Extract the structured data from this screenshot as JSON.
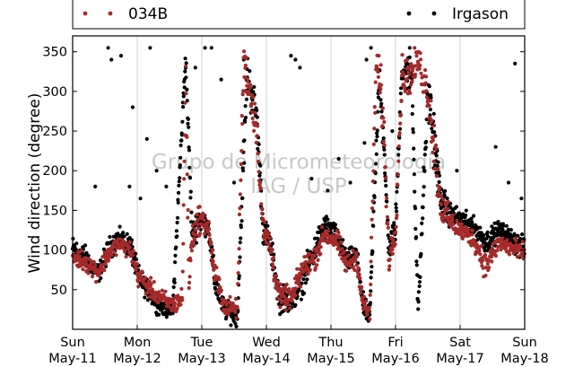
{
  "chart_data": {
    "type": "scatter",
    "ylabel": "Wind direction (degree)",
    "ylim": [
      0,
      370
    ],
    "yticks": [
      50,
      100,
      150,
      200,
      250,
      300,
      350
    ],
    "xlim": [
      0,
      7
    ],
    "xticks": [
      {
        "x": 0,
        "day": "Sun",
        "date": "May-11"
      },
      {
        "x": 1,
        "day": "Mon",
        "date": "May-12"
      },
      {
        "x": 2,
        "day": "Tue",
        "date": "May-13"
      },
      {
        "x": 3,
        "day": "Wed",
        "date": "May-14"
      },
      {
        "x": 4,
        "day": "Thu",
        "date": "May-15"
      },
      {
        "x": 5,
        "day": "Fri",
        "date": "May-16"
      },
      {
        "x": 6,
        "day": "Sat",
        "date": "May-17"
      },
      {
        "x": 7,
        "day": "Sun",
        "date": "May-18"
      }
    ],
    "grid": "vertical",
    "legend_placement": "top",
    "watermark": [
      "Grupo de Micrometeorologia",
      "IAG / USP"
    ],
    "series": [
      {
        "name": "034B",
        "color": "#a52a2a",
        "trend": [
          [
            0.0,
            92,
            10
          ],
          [
            0.2,
            85,
            10
          ],
          [
            0.4,
            72,
            10
          ],
          [
            0.55,
            95,
            10
          ],
          [
            0.7,
            108,
            8
          ],
          [
            0.9,
            100,
            10
          ],
          [
            1.0,
            70,
            12
          ],
          [
            1.15,
            55,
            10
          ],
          [
            1.35,
            40,
            10
          ],
          [
            1.55,
            30,
            10
          ],
          [
            1.7,
            40,
            12
          ],
          [
            1.75,
            330,
            25
          ],
          [
            1.8,
            60,
            20
          ],
          [
            1.85,
            115,
            15
          ],
          [
            1.95,
            140,
            15
          ],
          [
            2.1,
            130,
            10
          ],
          [
            2.2,
            70,
            15
          ],
          [
            2.35,
            30,
            10
          ],
          [
            2.55,
            25,
            10
          ],
          [
            2.65,
            340,
            20
          ],
          [
            2.75,
            300,
            25
          ],
          [
            2.85,
            255,
            20
          ],
          [
            2.95,
            125,
            15
          ],
          [
            3.05,
            110,
            15
          ],
          [
            3.2,
            40,
            12
          ],
          [
            3.4,
            40,
            12
          ],
          [
            3.55,
            75,
            15
          ],
          [
            3.75,
            90,
            12
          ],
          [
            3.9,
            120,
            12
          ],
          [
            4.1,
            110,
            12
          ],
          [
            4.25,
            80,
            12
          ],
          [
            4.4,
            90,
            10
          ],
          [
            4.5,
            30,
            12
          ],
          [
            4.6,
            20,
            10
          ],
          [
            4.7,
            340,
            20
          ],
          [
            4.8,
            280,
            30
          ],
          [
            4.9,
            90,
            15
          ],
          [
            5.0,
            125,
            15
          ],
          [
            5.1,
            320,
            20
          ],
          [
            5.25,
            320,
            20
          ],
          [
            5.35,
            340,
            15
          ],
          [
            5.5,
            300,
            25
          ],
          [
            5.6,
            230,
            30
          ],
          [
            5.7,
            160,
            20
          ],
          [
            5.85,
            135,
            12
          ],
          [
            6.0,
            125,
            10
          ],
          [
            6.2,
            115,
            10
          ],
          [
            6.4,
            80,
            15
          ],
          [
            6.6,
            110,
            10
          ],
          [
            6.85,
            100,
            12
          ],
          [
            7.0,
            95,
            10
          ]
        ]
      },
      {
        "name": "Irgason",
        "color": "#000000",
        "trend": [
          [
            0.0,
            100,
            15
          ],
          [
            0.2,
            90,
            12
          ],
          [
            0.4,
            70,
            10
          ],
          [
            0.55,
            100,
            12
          ],
          [
            0.7,
            115,
            10
          ],
          [
            0.9,
            105,
            12
          ],
          [
            1.0,
            70,
            12
          ],
          [
            1.15,
            50,
            10
          ],
          [
            1.35,
            30,
            10
          ],
          [
            1.55,
            25,
            10
          ],
          [
            1.75,
            345,
            15
          ],
          [
            1.85,
            115,
            15
          ],
          [
            1.95,
            140,
            15
          ],
          [
            2.1,
            130,
            10
          ],
          [
            2.2,
            60,
            15
          ],
          [
            2.35,
            25,
            10
          ],
          [
            2.55,
            15,
            10
          ],
          [
            2.7,
            320,
            25
          ],
          [
            2.85,
            270,
            20
          ],
          [
            2.95,
            125,
            15
          ],
          [
            3.05,
            110,
            15
          ],
          [
            3.2,
            40,
            15
          ],
          [
            3.4,
            35,
            12
          ],
          [
            3.55,
            60,
            15
          ],
          [
            3.75,
            100,
            15
          ],
          [
            3.9,
            130,
            15
          ],
          [
            4.1,
            115,
            12
          ],
          [
            4.25,
            85,
            12
          ],
          [
            4.4,
            95,
            10
          ],
          [
            4.5,
            30,
            12
          ],
          [
            4.6,
            15,
            10
          ],
          [
            4.75,
            330,
            20
          ],
          [
            4.9,
            100,
            15
          ],
          [
            5.0,
            130,
            15
          ],
          [
            5.1,
            330,
            20
          ],
          [
            5.25,
            320,
            20
          ],
          [
            5.35,
            20,
            15
          ],
          [
            5.5,
            300,
            25
          ],
          [
            5.6,
            240,
            30
          ],
          [
            5.7,
            160,
            20
          ],
          [
            5.85,
            145,
            12
          ],
          [
            6.0,
            140,
            10
          ],
          [
            6.2,
            130,
            10
          ],
          [
            6.4,
            110,
            12
          ],
          [
            6.6,
            125,
            10
          ],
          [
            6.85,
            110,
            12
          ],
          [
            7.0,
            100,
            12
          ]
        ],
        "outliers": [
          [
            0.55,
            355
          ],
          [
            0.6,
            340
          ],
          [
            0.75,
            345
          ],
          [
            0.88,
            180
          ],
          [
            0.93,
            280
          ],
          [
            1.2,
            355
          ],
          [
            1.15,
            240
          ],
          [
            1.3,
            200
          ],
          [
            1.45,
            180
          ],
          [
            1.9,
            330
          ],
          [
            2.15,
            355
          ],
          [
            2.3,
            315
          ],
          [
            2.65,
            340
          ],
          [
            3.38,
            345
          ],
          [
            3.45,
            340
          ],
          [
            3.52,
            330
          ],
          [
            3.7,
            190
          ],
          [
            4.12,
            215
          ],
          [
            4.3,
            185
          ],
          [
            4.52,
            235
          ],
          [
            4.55,
            340
          ],
          [
            4.62,
            355
          ],
          [
            4.95,
            250
          ],
          [
            5.22,
            355
          ],
          [
            5.45,
            200
          ],
          [
            5.95,
            200
          ],
          [
            6.55,
            230
          ],
          [
            6.75,
            185
          ],
          [
            6.85,
            335
          ],
          [
            6.95,
            165
          ],
          [
            2.5,
            185
          ],
          [
            2.05,
            355
          ],
          [
            1.05,
            165
          ],
          [
            0.35,
            180
          ],
          [
            3.95,
            175
          ]
        ]
      }
    ]
  }
}
